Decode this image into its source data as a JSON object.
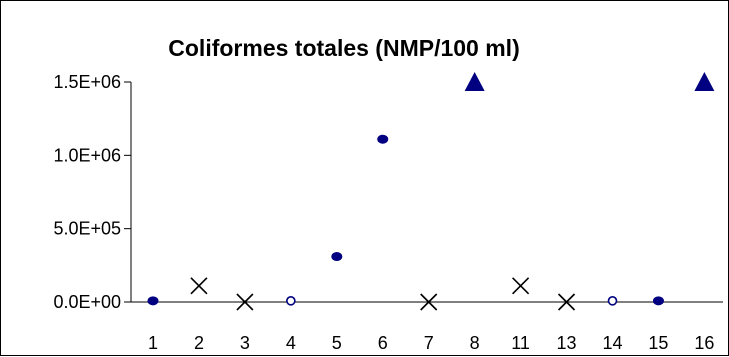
{
  "chart_data": {
    "type": "scatter",
    "title": "Coliformes totales (NMP/100 ml)",
    "xlabel": "",
    "ylabel": "",
    "categories": [
      "1",
      "2",
      "3",
      "4",
      "5",
      "6",
      "7",
      "8",
      "11",
      "13",
      "14",
      "15",
      "16"
    ],
    "y_ticks": [
      "0.0E+00",
      "5.0E+05",
      "1.0E+06",
      "1.5E+06"
    ],
    "ylim": [
      0,
      1500000
    ],
    "grid": false,
    "legend": "none",
    "points": [
      {
        "x": "1",
        "y": 8000,
        "marker": "dot"
      },
      {
        "x": "2",
        "y": 110000,
        "marker": "cross"
      },
      {
        "x": "3",
        "y": 0,
        "marker": "cross"
      },
      {
        "x": "4",
        "y": 8000,
        "marker": "circle-open"
      },
      {
        "x": "5",
        "y": 310000,
        "marker": "dot"
      },
      {
        "x": "6",
        "y": 1110000,
        "marker": "dot"
      },
      {
        "x": "7",
        "y": 0,
        "marker": "cross"
      },
      {
        "x": "8",
        "y": 1500000,
        "marker": "triangle"
      },
      {
        "x": "11",
        "y": 110000,
        "marker": "cross"
      },
      {
        "x": "13",
        "y": 0,
        "marker": "cross"
      },
      {
        "x": "14",
        "y": 8000,
        "marker": "circle-open"
      },
      {
        "x": "15",
        "y": 8000,
        "marker": "dot"
      },
      {
        "x": "16",
        "y": 1500000,
        "marker": "triangle"
      }
    ],
    "colors": {
      "marker": "#000080",
      "cross": "#000000",
      "axis": "#000000"
    }
  }
}
